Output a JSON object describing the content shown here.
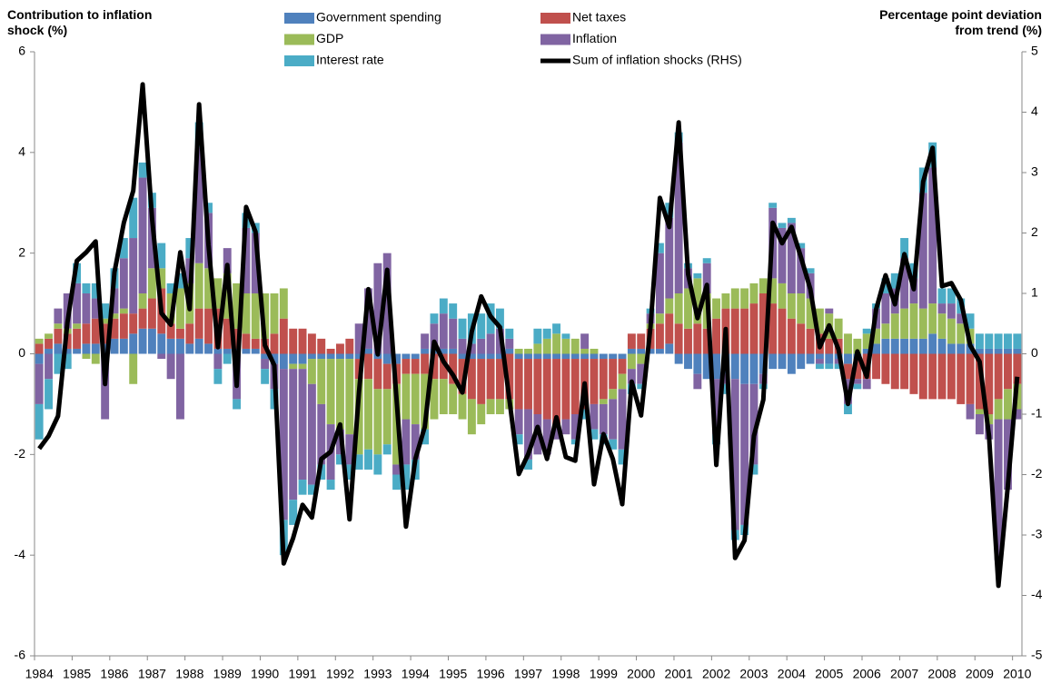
{
  "chart_data": {
    "type": "bar",
    "stacked": true,
    "ylabel": "Contribution to inflation shock (%)",
    "y2label": "Percentage point deviation from trend (%)",
    "categories": [
      "1984",
      null,
      null,
      null,
      "1985",
      null,
      null,
      null,
      "1986",
      null,
      null,
      null,
      "1987",
      null,
      null,
      null,
      "1988",
      null,
      null,
      null,
      "1989",
      null,
      null,
      null,
      "1990",
      null,
      null,
      null,
      "1991",
      null,
      null,
      null,
      "1992",
      null,
      null,
      null,
      "1993",
      null,
      null,
      null,
      "1994",
      null,
      null,
      null,
      "1995",
      null,
      null,
      null,
      "1996",
      null,
      null,
      null,
      "1997",
      null,
      null,
      null,
      "1998",
      null,
      null,
      null,
      "1999",
      null,
      null,
      null,
      "2000",
      null,
      null,
      null,
      "2001",
      null,
      null,
      null,
      "2002",
      null,
      null,
      null,
      "2003",
      null,
      null,
      null,
      "2004",
      null,
      null,
      null,
      "2005",
      null,
      null,
      null,
      "2006",
      null,
      null,
      null,
      "2007",
      null,
      null,
      null,
      "2008",
      null,
      null,
      null,
      "2009",
      null,
      null,
      null,
      "2010"
    ],
    "ylim": [
      -6,
      6
    ],
    "yticks": [
      -6,
      -4,
      -2,
      0,
      2,
      4,
      6
    ],
    "y2lim": [
      -5,
      5
    ],
    "y2ticks": [
      -5,
      -4,
      -3,
      -2,
      -1,
      0,
      1,
      2,
      3,
      4,
      5
    ],
    "series": [
      {
        "name": "Government spending",
        "color": "#4f81bd",
        "values": [
          -0.2,
          0.1,
          0.2,
          0.1,
          0.1,
          0.2,
          0.2,
          0.2,
          0.3,
          0.3,
          0.4,
          0.5,
          0.5,
          0.4,
          0.3,
          0.3,
          0.2,
          0.3,
          0.2,
          0.1,
          0.1,
          0.1,
          0.1,
          0.1,
          -0.1,
          -0.2,
          -0.3,
          -0.2,
          -0.2,
          -0.1,
          -0.1,
          -0.1,
          -0.1,
          -0.1,
          -0.1,
          0.1,
          -0.1,
          -0.2,
          -0.2,
          -0.1,
          -0.1,
          0.1,
          0.1,
          0.1,
          0.1,
          -0.1,
          -0.1,
          -0.1,
          -0.1,
          -0.1,
          0.1,
          -0.1,
          -0.1,
          -0.1,
          -0.1,
          -0.1,
          -0.1,
          -0.1,
          -0.1,
          -0.1,
          -0.1,
          -0.1,
          -0.1,
          0.1,
          0.1,
          0.1,
          0.1,
          0.2,
          -0.2,
          -0.3,
          -0.4,
          -0.5,
          -0.5,
          -0.4,
          -0.5,
          -0.6,
          -0.6,
          -0.4,
          -0.3,
          -0.3,
          -0.4,
          -0.3,
          -0.2,
          -0.1,
          -0.2,
          -0.1,
          -0.2,
          -0.1,
          0.1,
          0.2,
          0.3,
          0.3,
          0.3,
          0.3,
          0.3,
          0.4,
          0.3,
          0.2,
          0.2,
          0.2,
          0.1,
          0.1,
          0.1,
          0.1,
          0.1
        ]
      },
      {
        "name": "Net taxes",
        "color": "#c0504d",
        "values": [
          0.2,
          0.2,
          0.3,
          0.3,
          0.4,
          0.4,
          0.5,
          0.4,
          0.4,
          0.5,
          0.4,
          0.4,
          0.6,
          0.9,
          0.3,
          0.2,
          0.4,
          0.6,
          0.7,
          0.8,
          0.6,
          0.4,
          0.3,
          0.2,
          0.3,
          0.4,
          0.7,
          0.5,
          0.5,
          0.4,
          0.3,
          0.1,
          0.2,
          0.3,
          -0.4,
          -0.5,
          -0.6,
          -0.5,
          -0.4,
          -0.3,
          -0.3,
          -0.4,
          -0.5,
          -0.5,
          -0.6,
          -0.7,
          -0.8,
          -0.9,
          -0.8,
          -0.8,
          -0.9,
          -1.0,
          -1.0,
          -1.1,
          -1.2,
          -1.3,
          -1.2,
          -1.1,
          -1.0,
          -0.9,
          -0.8,
          -0.6,
          -0.3,
          0.3,
          0.3,
          0.4,
          0.5,
          0.6,
          0.6,
          0.5,
          0.6,
          0.5,
          0.7,
          0.9,
          0.9,
          0.9,
          1.0,
          1.2,
          1.0,
          0.9,
          0.7,
          0.6,
          0.5,
          0.4,
          0.3,
          0.3,
          -0.3,
          -0.4,
          -0.5,
          -0.5,
          -0.6,
          -0.7,
          -0.7,
          -0.8,
          -0.9,
          -0.9,
          -0.9,
          -0.9,
          -1.0,
          -1.0,
          -1.1,
          -1.2,
          -0.9,
          -0.7,
          -0.6
        ]
      },
      {
        "name": "GDP",
        "color": "#9bbb59",
        "values": [
          0.1,
          0.1,
          0.1,
          0.1,
          0.1,
          -0.1,
          -0.2,
          0.1,
          0.1,
          0.1,
          -0.6,
          0.3,
          0.6,
          0.4,
          0.6,
          0.8,
          0.8,
          0.9,
          0.8,
          0.6,
          0.9,
          0.9,
          0.8,
          0.9,
          0.9,
          0.8,
          0.6,
          -0.1,
          -0.1,
          -0.5,
          -0.9,
          -1.3,
          -1.4,
          -1.5,
          -1.5,
          -1.4,
          -1.3,
          -1.1,
          -1.6,
          -0.9,
          -1.0,
          -1.1,
          -0.8,
          -0.7,
          -0.6,
          -0.5,
          -0.7,
          -0.4,
          -0.3,
          -0.3,
          -0.2,
          0.1,
          0.1,
          0.2,
          0.3,
          0.4,
          0.3,
          0.3,
          0.1,
          0.1,
          -0.1,
          -0.2,
          -0.3,
          -0.3,
          -0.2,
          0.1,
          0.2,
          0.3,
          0.6,
          0.8,
          0.9,
          0.7,
          0.4,
          0.3,
          0.4,
          0.4,
          0.4,
          0.3,
          0.5,
          0.5,
          0.5,
          0.6,
          0.6,
          0.5,
          0.5,
          0.4,
          0.4,
          0.3,
          0.3,
          0.3,
          0.3,
          0.5,
          0.6,
          0.7,
          0.6,
          0.6,
          0.5,
          0.5,
          0.4,
          0.3,
          -0.1,
          -0.2,
          -0.4,
          -0.6,
          -0.5
        ]
      },
      {
        "name": "Inflation",
        "color": "#8064a2",
        "values": [
          -0.8,
          -0.5,
          0.3,
          0.7,
          0.8,
          0.6,
          0.4,
          -1.3,
          0.5,
          1.0,
          1.5,
          2.3,
          1.2,
          -0.1,
          -0.5,
          -1.3,
          0.5,
          2.3,
          1.1,
          -0.3,
          0.5,
          -0.9,
          1.3,
          1.2,
          -0.2,
          -0.5,
          -3.0,
          -2.6,
          -2.2,
          -2.0,
          -1.2,
          -1.1,
          -0.5,
          -0.6,
          0.6,
          1.2,
          1.8,
          2.0,
          -0.2,
          -0.9,
          -0.7,
          0.3,
          0.5,
          0.7,
          0.6,
          0.3,
          0.2,
          0.3,
          0.4,
          0.5,
          0.2,
          -0.5,
          -1.0,
          -0.8,
          -0.7,
          -0.3,
          -0.3,
          -0.5,
          0.3,
          -0.5,
          -0.6,
          -0.8,
          -1.2,
          -0.3,
          -0.4,
          0.2,
          1.2,
          1.6,
          3.0,
          0.4,
          -0.3,
          0.6,
          -1.1,
          -0.2,
          -3.0,
          -2.8,
          -1.6,
          -0.2,
          1.4,
          1.1,
          1.4,
          0.9,
          0.5,
          -0.1,
          0.1,
          -0.1,
          -0.5,
          -0.1,
          -0.2,
          0.4,
          0.6,
          0.5,
          1.0,
          0.5,
          2.3,
          2.7,
          0.2,
          0.3,
          0.2,
          -0.3,
          -0.4,
          -0.3,
          -2.8,
          -1.4,
          -0.2
        ]
      },
      {
        "name": "Interest rate",
        "color": "#4bacc6",
        "values": [
          -0.7,
          -0.6,
          -0.4,
          -0.3,
          0.4,
          0.2,
          0.3,
          0.3,
          0.4,
          0.4,
          0.8,
          0.3,
          0.3,
          0.5,
          0.2,
          0.3,
          0.4,
          0.5,
          0.2,
          -0.3,
          -0.2,
          -0.2,
          0.3,
          0.2,
          -0.3,
          -0.4,
          -0.7,
          -0.5,
          -0.3,
          -0.2,
          -0.3,
          -0.2,
          -0.2,
          -0.3,
          -0.3,
          -0.4,
          -0.4,
          -0.2,
          -0.3,
          -0.5,
          -0.4,
          -0.3,
          0.2,
          0.3,
          0.3,
          0.4,
          0.6,
          0.5,
          0.6,
          0.4,
          0.2,
          -0.2,
          -0.2,
          0.3,
          0.2,
          0.2,
          0.1,
          -0.1,
          -0.2,
          -0.2,
          -0.2,
          -0.2,
          -0.3,
          -0.2,
          -0.1,
          0.1,
          0.2,
          0.3,
          0.2,
          0.1,
          0.1,
          0.1,
          -0.2,
          -0.2,
          -0.2,
          -0.2,
          -0.2,
          -0.1,
          0.1,
          0.1,
          0.1,
          0.1,
          0.1,
          -0.1,
          -0.1,
          -0.1,
          -0.2,
          -0.1,
          0.1,
          0.1,
          0.3,
          0.3,
          0.4,
          0.3,
          0.5,
          0.5,
          0.3,
          0.3,
          0.3,
          0.3,
          0.3,
          0.3,
          0.3,
          0.3,
          0.3
        ]
      },
      {
        "name": "Sum of inflation shocks (RHS)",
        "color": "#000000",
        "type": "line",
        "axis": "y2",
        "values": [
          -1.57,
          -1.36,
          -1.03,
          0.52,
          1.54,
          1.68,
          1.86,
          -0.5,
          1.35,
          2.17,
          2.7,
          4.46,
          2.24,
          0.67,
          0.48,
          1.68,
          0.74,
          4.13,
          1.8,
          0.11,
          1.47,
          -0.53,
          2.43,
          2.02,
          0.14,
          -0.19,
          -3.47,
          -3.05,
          -2.5,
          -2.71,
          -1.74,
          -1.62,
          -1.17,
          -2.74,
          -0.64,
          1.07,
          -0.01,
          1.39,
          -0.76,
          -2.86,
          -1.74,
          -1.21,
          0.2,
          -0.13,
          -0.35,
          -0.64,
          0.37,
          0.95,
          0.62,
          0.44,
          -0.76,
          -1.99,
          -1.66,
          -1.21,
          -1.74,
          -1.05,
          -1.71,
          -1.77,
          -0.49,
          -2.16,
          -1.33,
          -1.74,
          -2.49,
          -0.46,
          -1.02,
          0.44,
          2.58,
          2.1,
          3.83,
          1.32,
          0.59,
          1.14,
          -1.84,
          0.41,
          -3.38,
          -3.09,
          -1.36,
          -0.76,
          2.17,
          1.83,
          2.1,
          1.6,
          1.07,
          0.11,
          0.47,
          0.07,
          -0.83,
          0.04,
          -0.38,
          0.74,
          1.3,
          0.82,
          1.65,
          1.07,
          2.85,
          3.41,
          1.12,
          1.17,
          0.89,
          0.14,
          -0.13,
          -1.36,
          -3.84,
          -2.19,
          -0.38
        ]
      }
    ]
  }
}
